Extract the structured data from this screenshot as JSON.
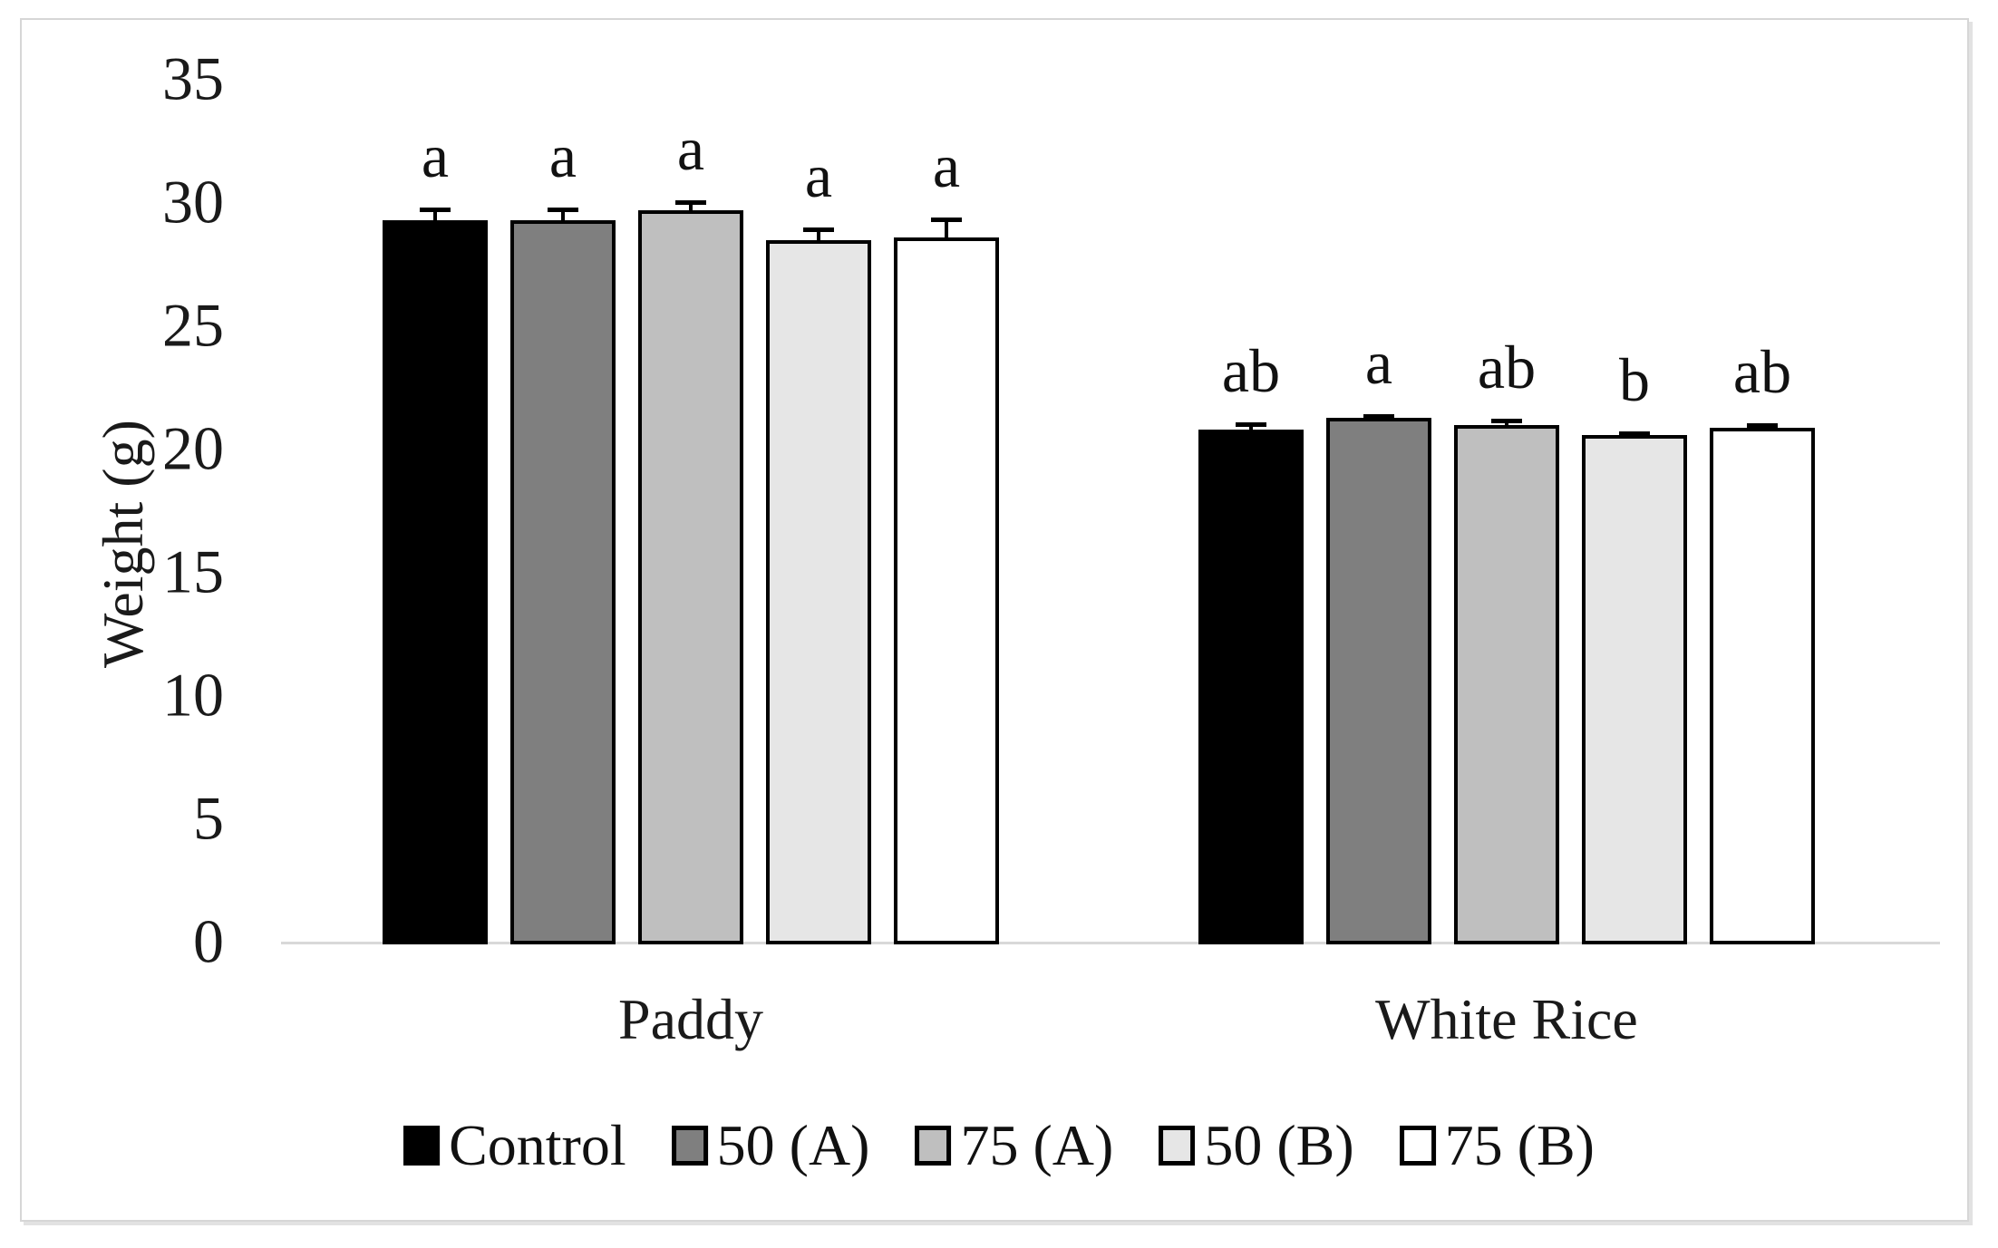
{
  "chart_data": {
    "type": "bar",
    "title": "",
    "xlabel": "",
    "ylabel": "Weight (g)",
    "ylim": [
      0,
      35
    ],
    "yticks": [
      0,
      5,
      10,
      15,
      20,
      25,
      30,
      35
    ],
    "grid": false,
    "legend_position": "bottom",
    "error_bars": true,
    "categories": [
      "Paddy",
      "White Rice"
    ],
    "series": [
      {
        "name": "Control",
        "color": "#000000",
        "values": [
          29.3,
          20.8
        ],
        "errors": [
          0.5,
          0.3
        ],
        "letters": [
          "a",
          "ab"
        ]
      },
      {
        "name": "50 (A)",
        "color": "#7f7f7f",
        "values": [
          29.3,
          21.3
        ],
        "errors": [
          0.5,
          0.15
        ],
        "letters": [
          "a",
          "a"
        ]
      },
      {
        "name": "75 (A)",
        "color": "#bfbfbf",
        "values": [
          29.7,
          21.0
        ],
        "errors": [
          0.4,
          0.25
        ],
        "letters": [
          "a",
          "ab"
        ]
      },
      {
        "name": "50 (B)",
        "color": "#e6e6e6",
        "values": [
          28.5,
          20.6
        ],
        "errors": [
          0.5,
          0.15
        ],
        "letters": [
          "a",
          "b"
        ]
      },
      {
        "name": "75 (B)",
        "color": "#ffffff",
        "values": [
          28.6,
          20.9
        ],
        "errors": [
          0.8,
          0.15
        ],
        "letters": [
          "a",
          "ab"
        ]
      }
    ],
    "colors": {
      "bar_outline": "#000000",
      "axis_line": "#d9d9d9",
      "text": "#1a1a1a",
      "frame_border": "#d6d6d6"
    }
  }
}
